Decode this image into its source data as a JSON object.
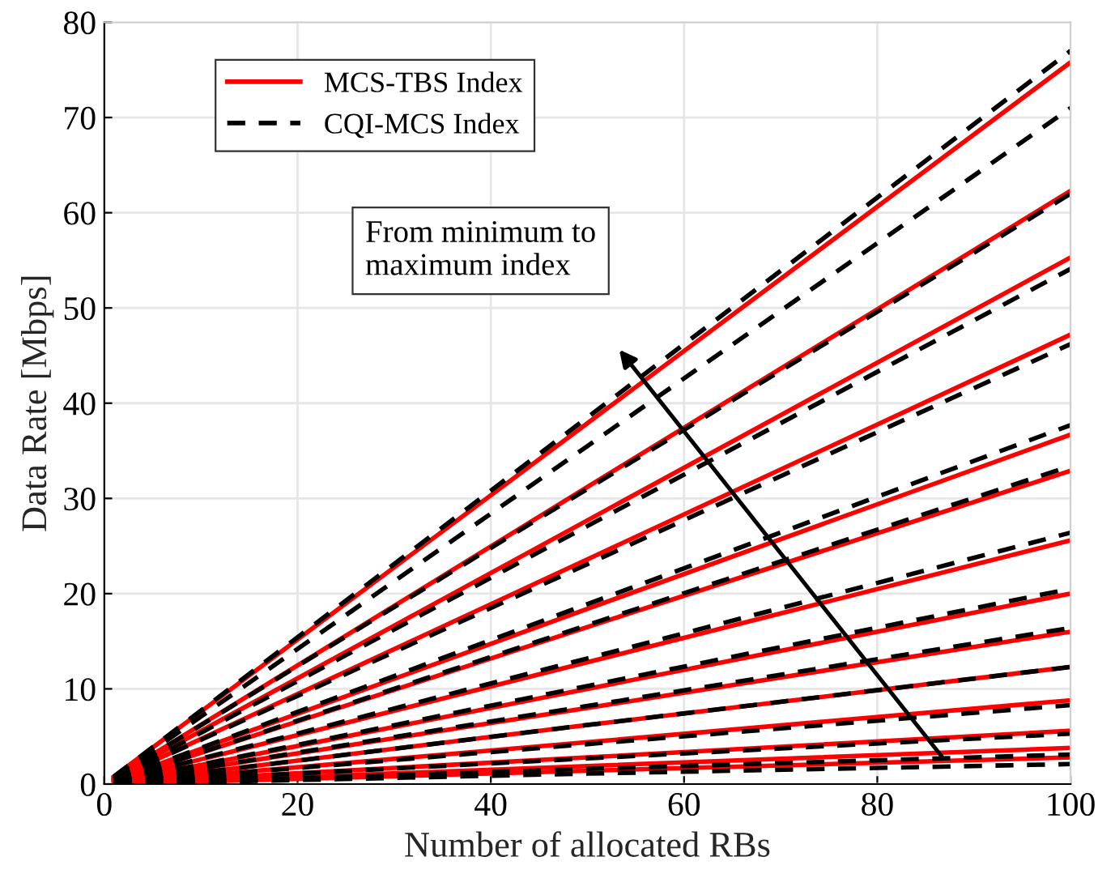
{
  "chart_data": {
    "type": "line",
    "xlabel": "Number of allocated RBs",
    "ylabel": "Data Rate [Mbps]",
    "x": [
      1,
      50,
      100
    ],
    "xlim": [
      0,
      100
    ],
    "ylim": [
      0,
      80
    ],
    "xticks": [
      0,
      20,
      40,
      60,
      80,
      100
    ],
    "yticks": [
      0,
      10,
      20,
      30,
      40,
      50,
      60,
      70,
      80
    ],
    "grid": true,
    "legend": "top left",
    "marker": "none",
    "annotations": [
      "From minimum to\nmaximum index"
    ],
    "series": [
      {
        "name": "MCS-TBS Index",
        "color": "#ff0000",
        "line_style": "solid",
        "values": [
          0.8,
          37.9,
          75.8
        ]
      },
      {
        "color": "#ff0000",
        "line_style": "solid",
        "values": [
          0.6,
          31.2,
          62.3
        ]
      },
      {
        "color": "#ff0000",
        "line_style": "solid",
        "values": [
          0.6,
          27.7,
          55.3
        ]
      },
      {
        "color": "#ff0000",
        "line_style": "solid",
        "values": [
          0.5,
          23.6,
          47.2
        ]
      },
      {
        "color": "#ff0000",
        "line_style": "solid",
        "values": [
          0.4,
          18.4,
          36.7
        ]
      },
      {
        "color": "#ff0000",
        "line_style": "solid",
        "values": [
          0.3,
          16.5,
          32.9
        ]
      },
      {
        "color": "#ff0000",
        "line_style": "solid",
        "values": [
          0.3,
          12.8,
          25.6
        ]
      },
      {
        "color": "#ff0000",
        "line_style": "solid",
        "values": [
          0.2,
          10.0,
          20.0
        ]
      },
      {
        "color": "#ff0000",
        "line_style": "solid",
        "values": [
          0.2,
          8.0,
          16.0
        ]
      },
      {
        "color": "#ff0000",
        "line_style": "solid",
        "values": [
          0.1,
          6.2,
          12.3
        ]
      },
      {
        "color": "#ff0000",
        "line_style": "solid",
        "values": [
          0.1,
          4.4,
          8.8
        ]
      },
      {
        "color": "#ff0000",
        "line_style": "solid",
        "values": [
          0.1,
          2.8,
          5.6
        ]
      },
      {
        "color": "#ff0000",
        "line_style": "solid",
        "values": [
          0.0,
          1.9,
          3.8
        ]
      },
      {
        "color": "#ff0000",
        "line_style": "solid",
        "values": [
          0.0,
          1.4,
          2.8
        ]
      },
      {
        "name": "CQI-MCS Index",
        "color": "#000000",
        "line_style": "dashed",
        "values": [
          0.8,
          38.5,
          77.0
        ]
      },
      {
        "color": "#000000",
        "line_style": "dashed",
        "values": [
          0.7,
          35.5,
          71.0
        ]
      },
      {
        "color": "#000000",
        "line_style": "dashed",
        "values": [
          0.6,
          31.0,
          62.0
        ]
      },
      {
        "color": "#000000",
        "line_style": "dashed",
        "values": [
          0.5,
          27.1,
          54.1
        ]
      },
      {
        "color": "#000000",
        "line_style": "dashed",
        "values": [
          0.5,
          23.1,
          46.2
        ]
      },
      {
        "color": "#000000",
        "line_style": "dashed",
        "values": [
          0.4,
          18.9,
          37.7
        ]
      },
      {
        "color": "#000000",
        "line_style": "dashed",
        "values": [
          0.3,
          16.7,
          33.4
        ]
      },
      {
        "color": "#000000",
        "line_style": "dashed",
        "values": [
          0.3,
          13.2,
          26.4
        ]
      },
      {
        "color": "#000000",
        "line_style": "dashed",
        "values": [
          0.2,
          10.3,
          20.5
        ]
      },
      {
        "color": "#000000",
        "line_style": "dashed",
        "values": [
          0.2,
          8.2,
          16.4
        ]
      },
      {
        "color": "#000000",
        "line_style": "dashed",
        "values": [
          0.1,
          6.2,
          12.3
        ]
      },
      {
        "color": "#000000",
        "line_style": "dashed",
        "values": [
          0.1,
          4.2,
          8.3
        ]
      },
      {
        "color": "#000000",
        "line_style": "dashed",
        "values": [
          0.1,
          2.7,
          5.3
        ]
      },
      {
        "color": "#000000",
        "line_style": "dashed",
        "values": [
          0.0,
          1.6,
          3.1
        ]
      },
      {
        "color": "#000000",
        "line_style": "dashed",
        "values": [
          0.0,
          1.1,
          2.1
        ]
      }
    ]
  }
}
